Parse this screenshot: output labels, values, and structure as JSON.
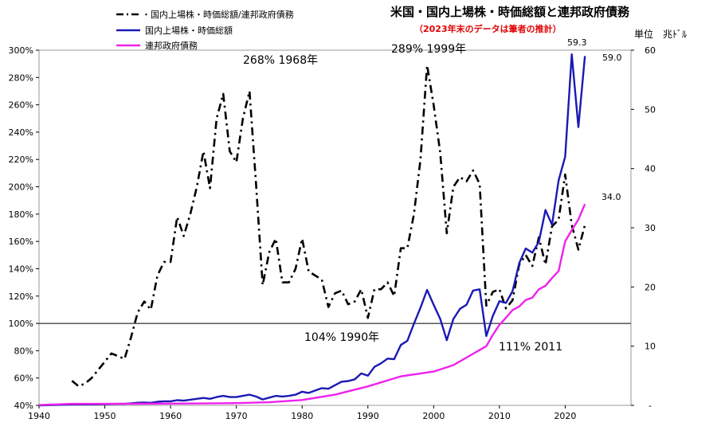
{
  "chart_data": {
    "type": "line",
    "title": "米国・国内上場株・時価総額と連邦政府債務",
    "subtitle": "（2023年末のデータは筆者の推計）",
    "right_axis_unit": "単位　兆ﾄﾞﾙ",
    "x_ticks": [
      "1940",
      "1950",
      "1960",
      "1970",
      "1980",
      "1990",
      "2000",
      "2010",
      "2020"
    ],
    "xlim": [
      1940,
      2030
    ],
    "left_axis": {
      "ylim": [
        40,
        300
      ],
      "ticks": [
        "40%",
        "60%",
        "80%",
        "100%",
        "120%",
        "140%",
        "160%",
        "180%",
        "200%",
        "220%",
        "240%",
        "260%",
        "280%",
        "300%"
      ]
    },
    "right_axis": {
      "ylim": [
        0,
        60
      ],
      "ticks": [
        "-",
        "10",
        "20",
        "30",
        "40",
        "50",
        "60"
      ]
    },
    "reference_line": 100,
    "annotations": [
      "268% 1968年",
      "289% 1999年",
      "104% 1990年",
      "111% 2011"
    ],
    "value_labels": [
      "59.3",
      "59.0",
      "34.0"
    ],
    "series": [
      {
        "name": "・国内上場株・時価総額/連邦政府債務",
        "axis": "left",
        "color": "#000000",
        "style": "dashdot",
        "x": [
          1945,
          1946,
          1947,
          1948,
          1949,
          1950,
          1951,
          1952,
          1953,
          1954,
          1955,
          1956,
          1957,
          1958,
          1959,
          1960,
          1961,
          1962,
          1963,
          1964,
          1965,
          1966,
          1967,
          1968,
          1969,
          1970,
          1971,
          1972,
          1973,
          1974,
          1975,
          1976,
          1977,
          1978,
          1979,
          1980,
          1981,
          1982,
          1983,
          1984,
          1985,
          1986,
          1987,
          1988,
          1989,
          1990,
          1991,
          1992,
          1993,
          1994,
          1995,
          1996,
          1997,
          1998,
          1999,
          2000,
          2001,
          2002,
          2003,
          2004,
          2005,
          2006,
          2007,
          2008,
          2009,
          2010,
          2011,
          2012,
          2013,
          2014,
          2015,
          2016,
          2017,
          2018,
          2019,
          2020,
          2021,
          2022,
          2023
        ],
        "y": [
          58,
          54,
          56,
          60,
          66,
          72,
          78,
          76,
          74,
          90,
          108,
          116,
          110,
          135,
          145,
          145,
          178,
          164,
          180,
          200,
          226,
          199,
          250,
          268,
          226,
          218,
          250,
          270,
          202,
          128,
          152,
          162,
          130,
          130,
          140,
          162,
          138,
          135,
          132,
          112,
          122,
          124,
          114,
          116,
          125,
          104,
          125,
          125,
          130,
          120,
          155,
          155,
          180,
          220,
          289,
          260,
          225,
          166,
          200,
          207,
          204,
          212,
          202,
          113,
          123,
          125,
          111,
          117,
          143,
          150,
          142,
          163,
          143,
          171,
          176,
          209,
          172,
          154,
          172
        ]
      },
      {
        "name": "国内上場株・時価総額",
        "axis": "right",
        "color": "#1a1ab4",
        "style": "solid",
        "x": [
          1940,
          1945,
          1946,
          1947,
          1948,
          1949,
          1950,
          1951,
          1952,
          1953,
          1954,
          1955,
          1956,
          1957,
          1958,
          1959,
          1960,
          1961,
          1962,
          1963,
          1964,
          1965,
          1966,
          1967,
          1968,
          1969,
          1970,
          1971,
          1972,
          1973,
          1974,
          1975,
          1976,
          1977,
          1978,
          1979,
          1980,
          1981,
          1982,
          1983,
          1984,
          1985,
          1986,
          1987,
          1988,
          1989,
          1990,
          1991,
          1992,
          1993,
          1994,
          1995,
          1996,
          1997,
          1998,
          1999,
          2000,
          2001,
          2002,
          2003,
          2004,
          2005,
          2006,
          2007,
          2008,
          2009,
          2010,
          2011,
          2012,
          2013,
          2014,
          2015,
          2016,
          2017,
          2018,
          2019,
          2020,
          2021,
          2022,
          2023
        ],
        "y": [
          0.0,
          0.15,
          0.17,
          0.16,
          0.16,
          0.17,
          0.2,
          0.23,
          0.25,
          0.25,
          0.35,
          0.45,
          0.48,
          0.43,
          0.6,
          0.68,
          0.68,
          0.88,
          0.8,
          0.95,
          1.1,
          1.25,
          1.1,
          1.4,
          1.6,
          1.4,
          1.4,
          1.6,
          1.8,
          1.5,
          1.0,
          1.3,
          1.6,
          1.5,
          1.6,
          1.8,
          2.3,
          2.1,
          2.5,
          2.9,
          2.8,
          3.4,
          4.0,
          4.1,
          4.4,
          5.4,
          5.0,
          6.5,
          7.1,
          7.9,
          7.8,
          10.2,
          10.9,
          13.8,
          16.5,
          19.5,
          17.0,
          14.6,
          11.0,
          14.6,
          16.3,
          17.0,
          19.4,
          19.6,
          11.7,
          15.1,
          17.6,
          17.3,
          19.3,
          24.0,
          26.5,
          25.8,
          27.6,
          33.0,
          30.5,
          38.0,
          42.0,
          59.3,
          47.0,
          59.0
        ]
      },
      {
        "name": "連邦政府債務",
        "axis": "right",
        "color": "#ee22ee",
        "style": "solid",
        "x": [
          1940,
          1945,
          1950,
          1955,
          1960,
          1965,
          1970,
          1975,
          1980,
          1985,
          1990,
          1995,
          2000,
          2003,
          2008,
          2009,
          2010,
          2011,
          2012,
          2013,
          2014,
          2015,
          2016,
          2017,
          2018,
          2019,
          2020,
          2021,
          2022,
          2023
        ],
        "y": [
          0.05,
          0.26,
          0.26,
          0.27,
          0.29,
          0.32,
          0.37,
          0.53,
          0.9,
          1.8,
          3.2,
          4.9,
          5.7,
          6.8,
          10.0,
          11.9,
          13.6,
          14.8,
          16.1,
          16.7,
          17.8,
          18.2,
          19.6,
          20.2,
          21.5,
          22.7,
          27.7,
          29.6,
          31.4,
          34.0
        ]
      }
    ]
  }
}
